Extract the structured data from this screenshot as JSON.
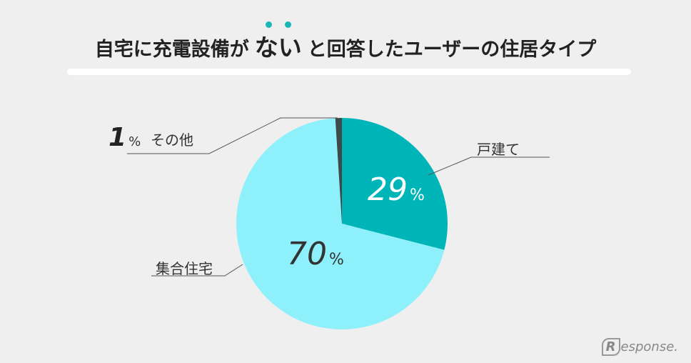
{
  "title": {
    "before": "自宅に充電設備が",
    "emphasis": "ない",
    "after": "と回答したユーザーの住居タイプ"
  },
  "chart_data": {
    "type": "pie",
    "slices": [
      {
        "label": "戸建て",
        "value": 29,
        "color": "#00b5b8"
      },
      {
        "label": "集合住宅",
        "value": 70,
        "color": "#8ef0fb"
      },
      {
        "label": "その他",
        "value": 1,
        "color": "#3d4a4a"
      }
    ],
    "unit": "%"
  },
  "labels": {
    "detached": {
      "name": "戸建て",
      "value": "29",
      "unit": "%"
    },
    "apartment": {
      "name": "集合住宅",
      "value": "70",
      "unit": "%"
    },
    "other": {
      "name": "その他",
      "value": "1",
      "unit": "%"
    }
  },
  "brand": {
    "mark": "R",
    "text": "esponse."
  }
}
